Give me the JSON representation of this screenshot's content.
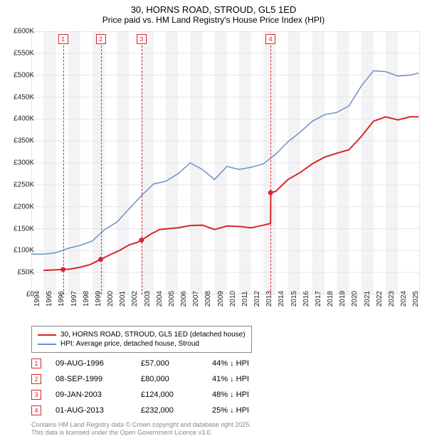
{
  "title_line1": "30, HORNS ROAD, STROUD, GL5 1ED",
  "title_line2": "Price paid vs. HM Land Registry's House Price Index (HPI)",
  "chart": {
    "type": "line",
    "background_color": "#ffffff",
    "grid_color": "#e6e6e8",
    "xlim": [
      1994,
      2025.8
    ],
    "ylim": [
      0,
      600000
    ],
    "ytick_step": 50000,
    "yticks": [
      "£0",
      "£50K",
      "£100K",
      "£150K",
      "£200K",
      "£250K",
      "£300K",
      "£350K",
      "£400K",
      "£450K",
      "£500K",
      "£550K",
      "£600K"
    ],
    "xticks": [
      1994,
      1995,
      1996,
      1997,
      1998,
      1999,
      2000,
      2001,
      2002,
      2003,
      2004,
      2005,
      2006,
      2007,
      2008,
      2009,
      2010,
      2011,
      2012,
      2013,
      2014,
      2015,
      2016,
      2017,
      2018,
      2019,
      2020,
      2021,
      2022,
      2023,
      2024,
      2025
    ],
    "alt_band_color": "#f3f3f5",
    "series": [
      {
        "name": "price_paid",
        "color": "#d9252a",
        "line_width": 2,
        "points": [
          [
            1995.0,
            55000
          ],
          [
            1996.6,
            57000
          ],
          [
            1997.2,
            58000
          ],
          [
            1998.0,
            62000
          ],
          [
            1998.8,
            68000
          ],
          [
            1999.68,
            80000
          ],
          [
            2000.4,
            90000
          ],
          [
            2001.2,
            100000
          ],
          [
            2002.0,
            113000
          ],
          [
            2002.6,
            118000
          ],
          [
            2003.02,
            124000
          ],
          [
            2003.8,
            138000
          ],
          [
            2004.5,
            148000
          ],
          [
            2005.2,
            150000
          ],
          [
            2006.0,
            152000
          ],
          [
            2007.0,
            157000
          ],
          [
            2008.0,
            158000
          ],
          [
            2009.0,
            148000
          ],
          [
            2010.0,
            156000
          ],
          [
            2011.0,
            155000
          ],
          [
            2012.0,
            152000
          ],
          [
            2013.0,
            158000
          ],
          [
            2013.58,
            162000
          ],
          [
            2013.6,
            232000
          ],
          [
            2014.0,
            235000
          ],
          [
            2015.0,
            262000
          ],
          [
            2016.0,
            278000
          ],
          [
            2017.0,
            298000
          ],
          [
            2018.0,
            313000
          ],
          [
            2019.0,
            322000
          ],
          [
            2020.0,
            330000
          ],
          [
            2021.0,
            360000
          ],
          [
            2022.0,
            395000
          ],
          [
            2023.0,
            405000
          ],
          [
            2024.0,
            398000
          ],
          [
            2025.0,
            405000
          ],
          [
            2025.7,
            405000
          ]
        ],
        "dots": [
          [
            1996.6,
            57000
          ],
          [
            1999.68,
            80000
          ],
          [
            2003.02,
            124000
          ],
          [
            2013.58,
            232000
          ]
        ]
      },
      {
        "name": "hpi",
        "color": "#6e8ecb",
        "line_width": 1.5,
        "points": [
          [
            1994.0,
            92000
          ],
          [
            1995.0,
            92000
          ],
          [
            1996.0,
            95000
          ],
          [
            1997.0,
            105000
          ],
          [
            1998.0,
            112000
          ],
          [
            1999.0,
            122000
          ],
          [
            2000.0,
            148000
          ],
          [
            2001.0,
            165000
          ],
          [
            2002.0,
            195000
          ],
          [
            2003.0,
            225000
          ],
          [
            2004.0,
            252000
          ],
          [
            2005.0,
            258000
          ],
          [
            2006.0,
            275000
          ],
          [
            2007.0,
            300000
          ],
          [
            2008.0,
            285000
          ],
          [
            2009.0,
            262000
          ],
          [
            2010.0,
            292000
          ],
          [
            2011.0,
            285000
          ],
          [
            2012.0,
            290000
          ],
          [
            2013.0,
            298000
          ],
          [
            2014.0,
            320000
          ],
          [
            2015.0,
            348000
          ],
          [
            2016.0,
            370000
          ],
          [
            2017.0,
            395000
          ],
          [
            2018.0,
            410000
          ],
          [
            2019.0,
            415000
          ],
          [
            2020.0,
            430000
          ],
          [
            2021.0,
            475000
          ],
          [
            2022.0,
            510000
          ],
          [
            2023.0,
            508000
          ],
          [
            2024.0,
            498000
          ],
          [
            2025.0,
            500000
          ],
          [
            2025.7,
            505000
          ]
        ]
      }
    ],
    "markers": [
      {
        "n": "1",
        "x": 1996.6,
        "color": "#d9252a"
      },
      {
        "n": "2",
        "x": 1999.68,
        "color": "#d9252a"
      },
      {
        "n": "3",
        "x": 2003.02,
        "color": "#d9252a"
      },
      {
        "n": "4",
        "x": 2013.58,
        "color": "#d9252a"
      }
    ]
  },
  "legend": {
    "items": [
      {
        "color": "#d9252a",
        "label": "30, HORNS ROAD, STROUD, GL5 1ED (detached house)"
      },
      {
        "color": "#6e8ecb",
        "label": "HPI: Average price, detached house, Stroud"
      }
    ]
  },
  "table": {
    "marker_color": "#d9252a",
    "rows": [
      {
        "n": "1",
        "date": "09-AUG-1996",
        "price": "£57,000",
        "pct": "44% ↓ HPI"
      },
      {
        "n": "2",
        "date": "08-SEP-1999",
        "price": "£80,000",
        "pct": "41% ↓ HPI"
      },
      {
        "n": "3",
        "date": "09-JAN-2003",
        "price": "£124,000",
        "pct": "48% ↓ HPI"
      },
      {
        "n": "4",
        "date": "01-AUG-2013",
        "price": "£232,000",
        "pct": "25% ↓ HPI"
      }
    ]
  },
  "footer_line1": "Contains HM Land Registry data © Crown copyright and database right 2025.",
  "footer_line2": "This data is licensed under the Open Government Licence v3.0."
}
